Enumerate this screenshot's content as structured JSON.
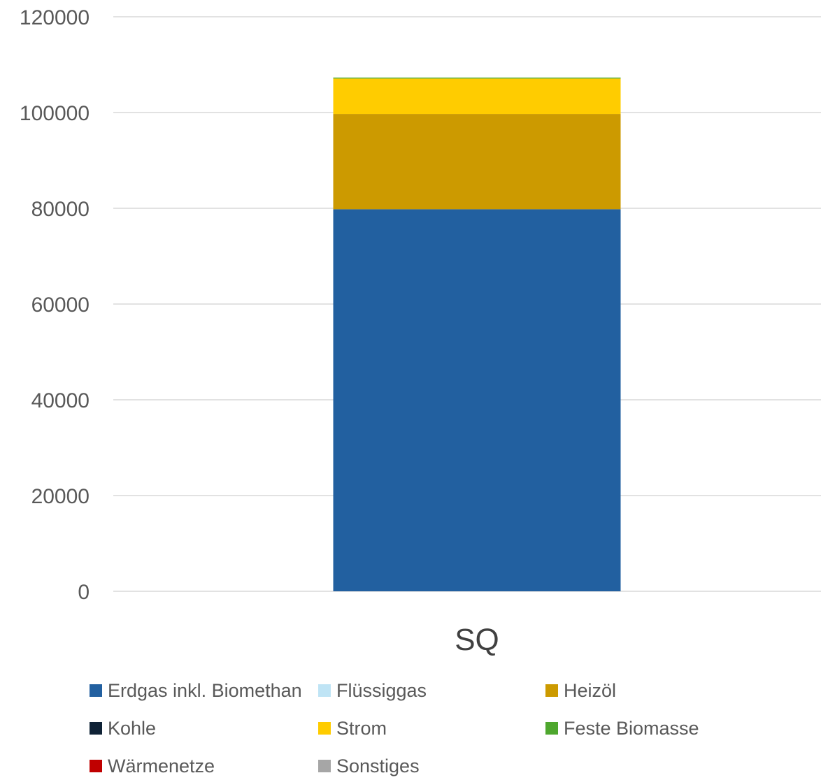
{
  "chart_data": {
    "type": "bar",
    "stacked": true,
    "title": "",
    "xlabel": "",
    "ylabel": "",
    "categories": [
      "SQ"
    ],
    "ylim": [
      0,
      120000
    ],
    "yticks": [
      "0",
      "20000",
      "40000",
      "60000",
      "80000",
      "100000",
      "120000"
    ],
    "grid": true,
    "legend_position": "bottom",
    "series": [
      {
        "name": "Erdgas inkl. Biomethan",
        "color": "#2260a0",
        "values": [
          79800
        ]
      },
      {
        "name": "Flüssiggas",
        "color": "#bfe4f5",
        "values": [
          0
        ]
      },
      {
        "name": "Heizöl",
        "color": "#cc9a00",
        "values": [
          19900
        ]
      },
      {
        "name": "Kohle",
        "color": "#0f2236",
        "values": [
          0
        ]
      },
      {
        "name": "Strom",
        "color": "#ffcc00",
        "values": [
          7400
        ]
      },
      {
        "name": "Feste Biomasse",
        "color": "#4ea72e",
        "values": [
          200
        ]
      },
      {
        "name": "Wärmenetze",
        "color": "#c00000",
        "values": [
          0
        ]
      },
      {
        "name": "Sonstiges",
        "color": "#a6a6a6",
        "values": [
          0
        ]
      }
    ]
  }
}
